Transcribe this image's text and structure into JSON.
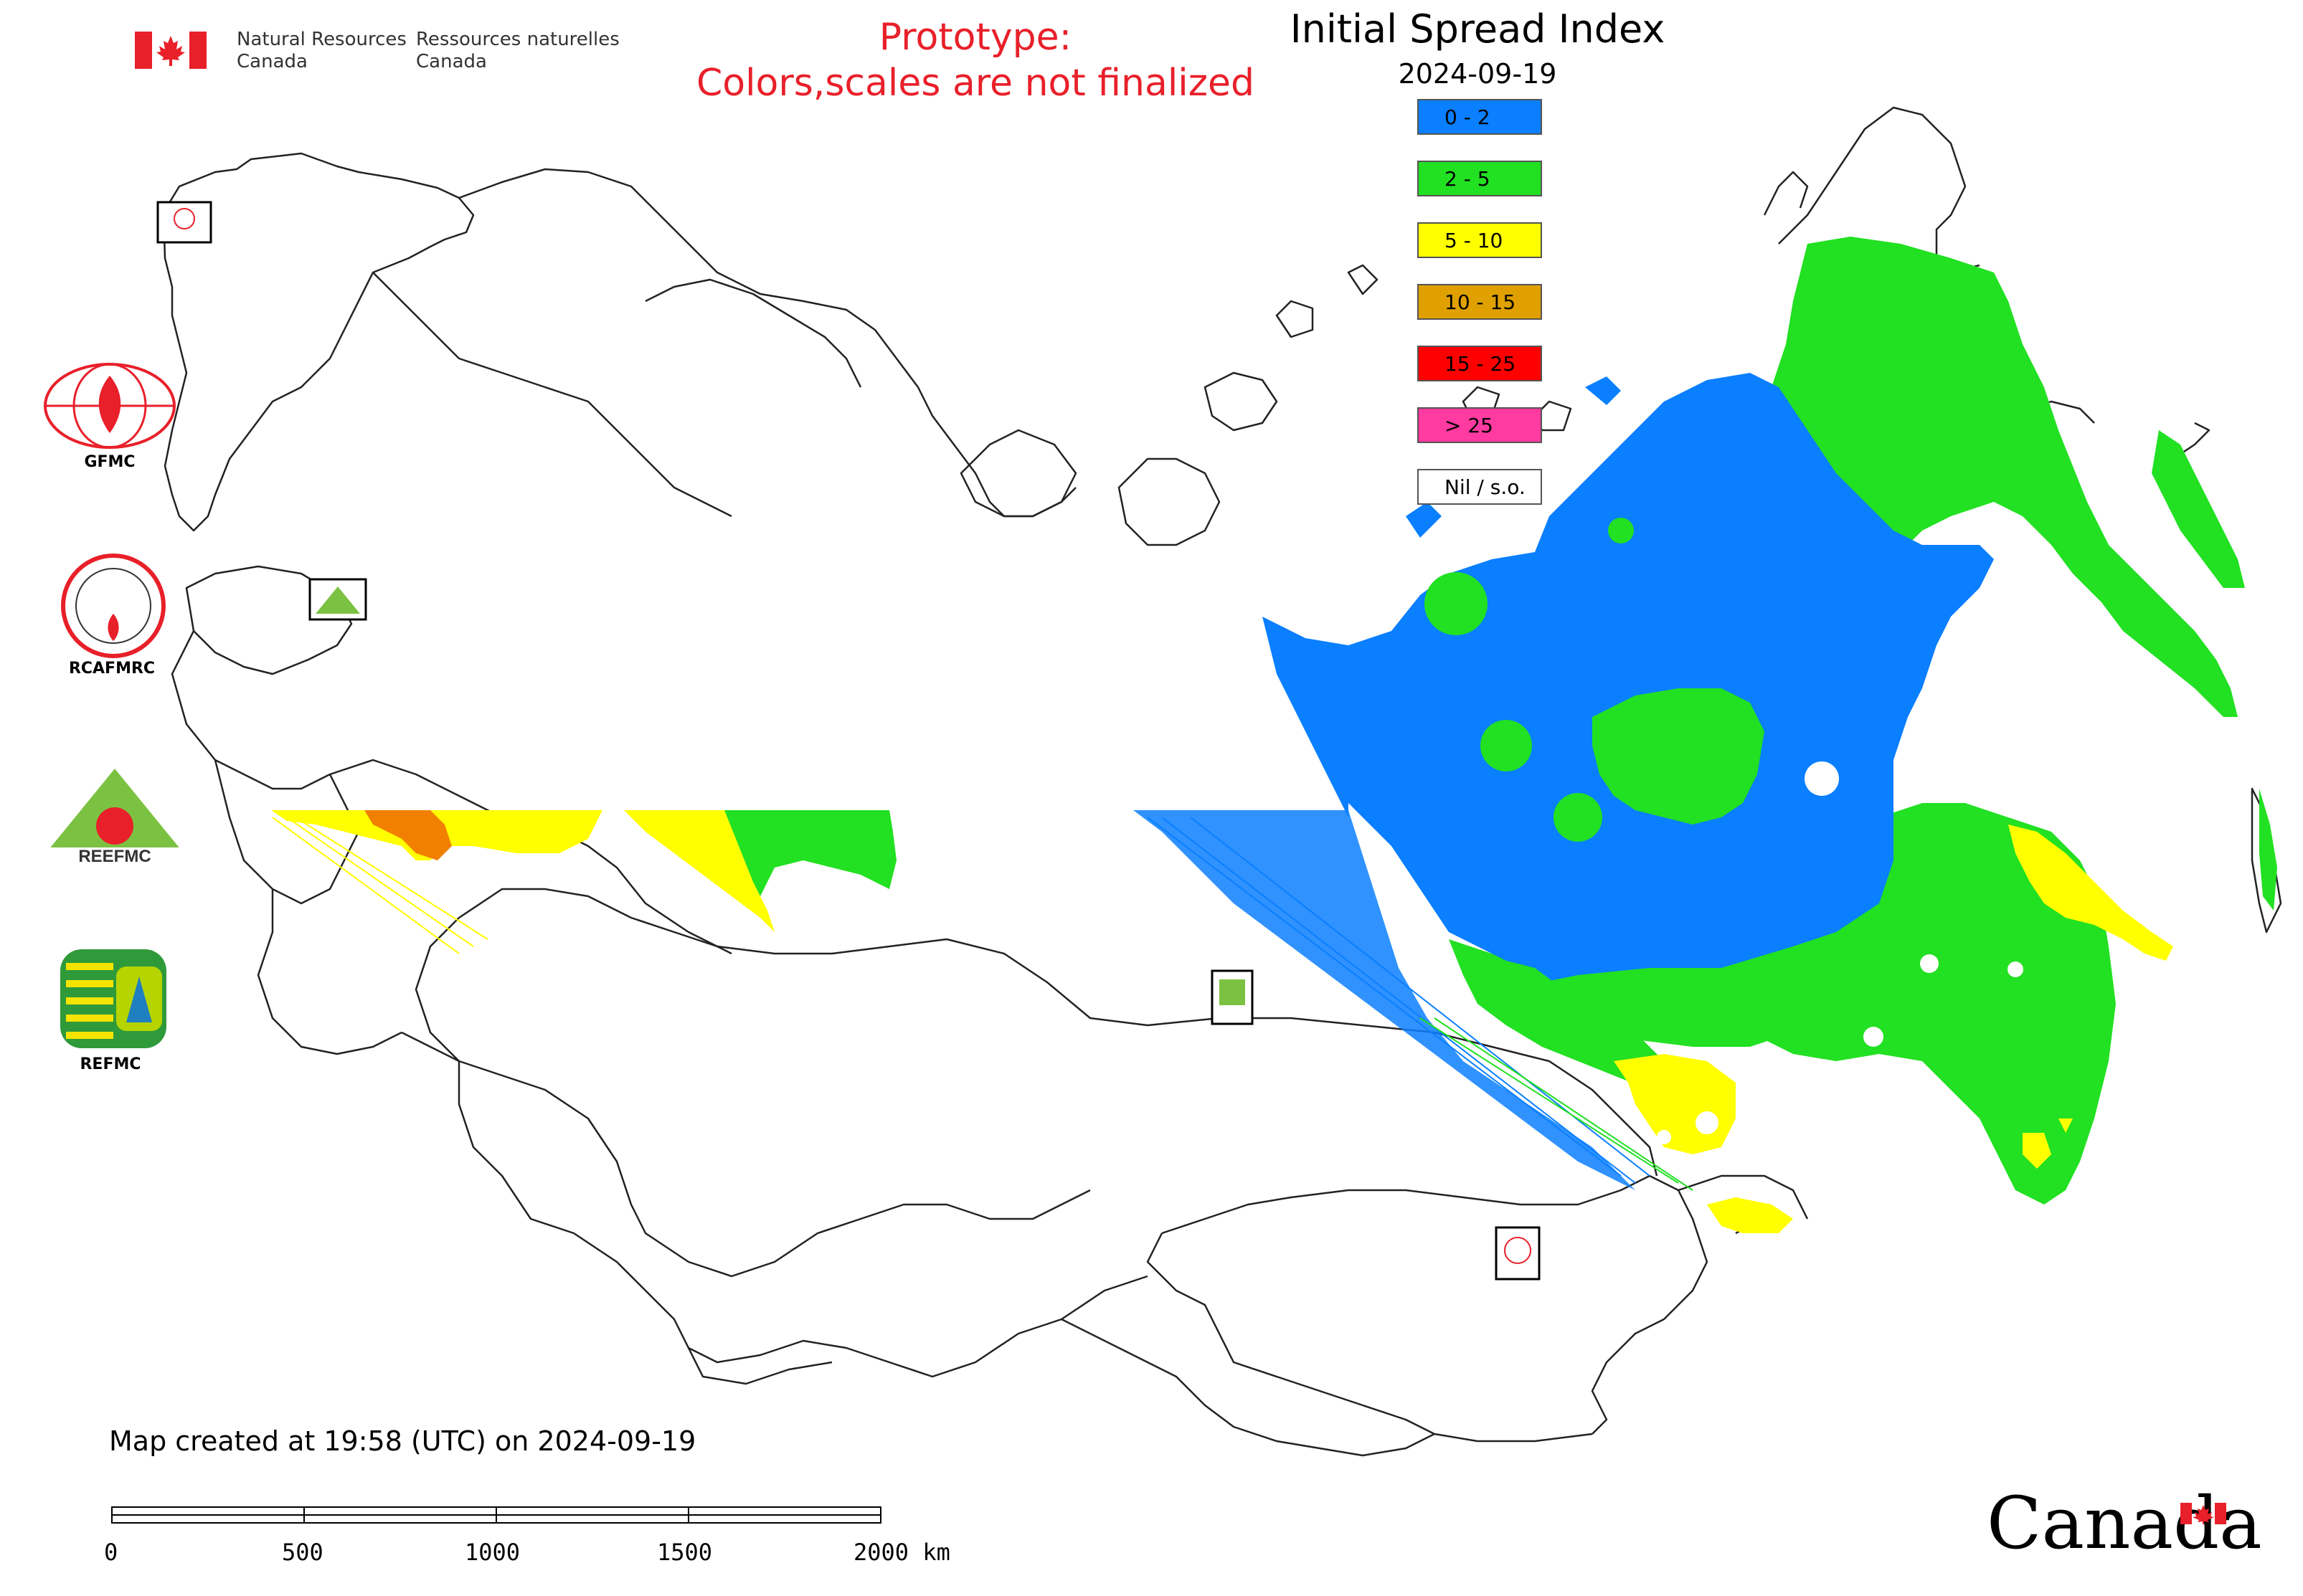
{
  "header": {
    "org_en": [
      "Natural Resources",
      "Canada"
    ],
    "org_fr": [
      "Ressources naturelles",
      "Canada"
    ],
    "prototype_lines": [
      "Prototype:",
      "Colors,scales are not finalized"
    ],
    "map_title": "Initial Spread Index",
    "map_date": "2024-09-19"
  },
  "legend": [
    {
      "label": "0 - 2",
      "color": "#0a7fff"
    },
    {
      "label": "2 - 5",
      "color": "#22e022"
    },
    {
      "label": "5 - 10",
      "color": "#ffff00"
    },
    {
      "label": "10 - 15",
      "color": "#e0a000"
    },
    {
      "label": "15 - 25",
      "color": "#ff0000"
    },
    {
      "label": "> 25",
      "color": "#ff3aa0"
    },
    {
      "label": "Nil / s.o.",
      "color": "#ffffff"
    }
  ],
  "partners": [
    {
      "label": "GFMC",
      "icon": "gfmc-logo-icon"
    },
    {
      "label": "RCAFMRC",
      "icon": "rcafmrc-logo-icon"
    },
    {
      "label": "REEFMC",
      "icon": "reefmc-logo-icon"
    },
    {
      "label": "REFMC",
      "icon": "refmc-logo-icon"
    }
  ],
  "footer": {
    "created_text": "Map created at 19:58 (UTC) on 2024-09-19",
    "scale_ticks": [
      "0",
      "500",
      "1000",
      "1500",
      "2000 km"
    ],
    "wordmark": "Canada"
  },
  "colors": {
    "blue": "#0a7fff",
    "green": "#22e022",
    "yellow": "#ffff00",
    "orange": "#f28000",
    "prototype_red": "#e8202a",
    "canada_flag_red": "#e8202a"
  }
}
